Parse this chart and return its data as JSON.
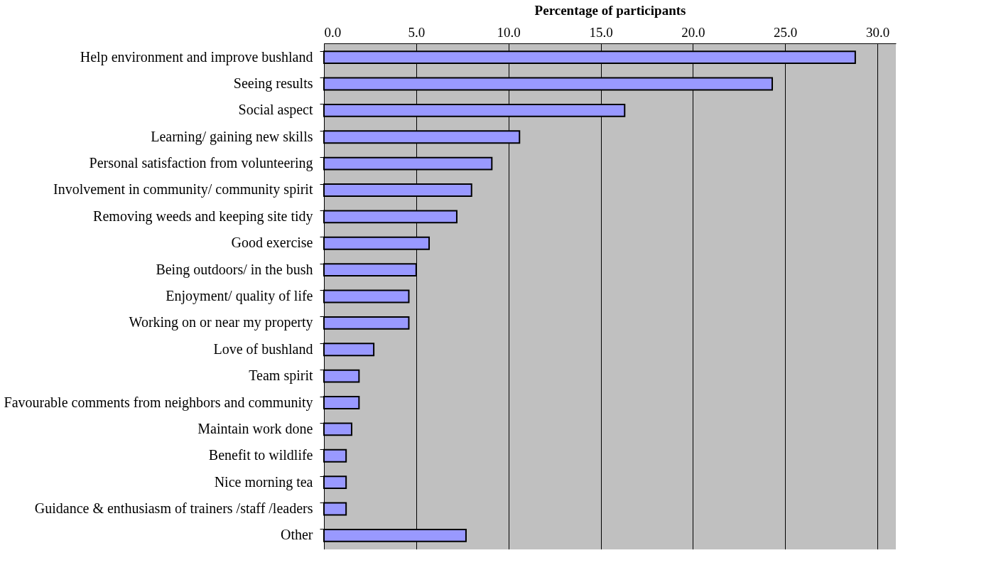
{
  "chart_data": {
    "type": "bar",
    "orientation": "horizontal",
    "xlabel": "Percentage of participants",
    "categories": [
      "Help environment and improve bushland",
      "Seeing results",
      "Social aspect",
      "Learning/ gaining new skills",
      "Personal satisfaction from volunteering",
      "Involvement in community/ community spirit",
      "Removing weeds and keeping site tidy",
      "Good exercise",
      "Being outdoors/ in the bush",
      "Enjoyment/ quality of life",
      "Working on or near my property",
      "Love of bushland",
      "Team spirit",
      "Favourable comments from neighbors and community",
      "Maintain work done",
      "Benefit to wildlife",
      "Nice morning tea",
      "Guidance & enthusiasm of trainers /staff /leaders",
      "Other"
    ],
    "values": [
      28.8,
      24.3,
      16.3,
      10.6,
      9.1,
      8.0,
      7.2,
      5.7,
      5.0,
      4.6,
      4.6,
      2.7,
      1.9,
      1.9,
      1.5,
      1.2,
      1.2,
      1.2,
      7.7
    ],
    "color": "#9999ff",
    "xlim": [
      0,
      31
    ],
    "xticks": [
      {
        "value": 0,
        "label": "0.0"
      },
      {
        "value": 5,
        "label": "5.0"
      },
      {
        "value": 10,
        "label": "10.0"
      },
      {
        "value": 15,
        "label": "15.0"
      },
      {
        "value": 20,
        "label": "20.0"
      },
      {
        "value": 25,
        "label": "25.0"
      },
      {
        "value": 30,
        "label": "30.0"
      }
    ],
    "grid": "x"
  }
}
